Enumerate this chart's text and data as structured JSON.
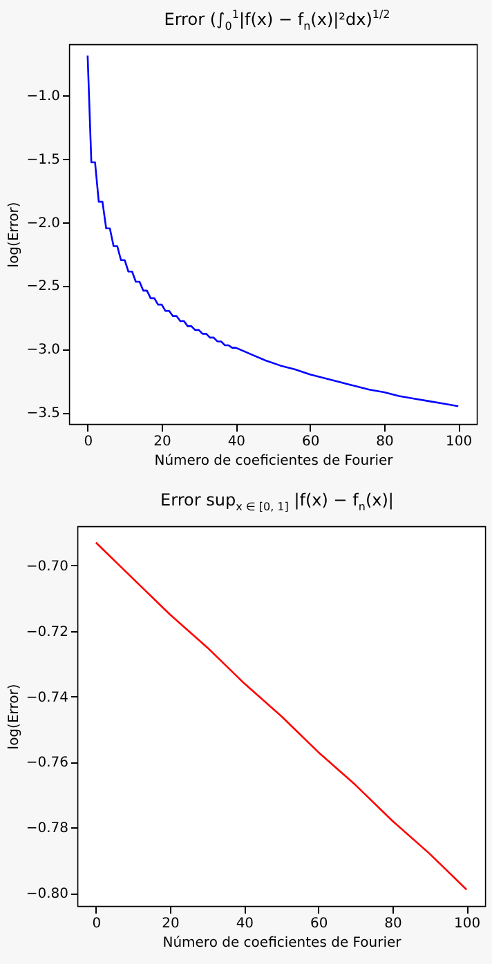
{
  "chart_data": [
    {
      "type": "line",
      "title": "Error (∫$_{0}$$^{1}$|f(x) − f$_{n}$(x)|²dx)$^{1/2}$",
      "xlabel": "Número de coeficientes de Fourier",
      "ylabel": "log(Error)",
      "x": [
        0,
        1,
        2,
        3,
        4,
        5,
        6,
        7,
        8,
        9,
        10,
        11,
        12,
        13,
        14,
        15,
        16,
        17,
        18,
        19,
        20,
        21,
        22,
        23,
        24,
        25,
        26,
        27,
        28,
        29,
        30,
        31,
        32,
        33,
        34,
        35,
        36,
        37,
        38,
        39,
        40,
        44,
        48,
        52,
        56,
        60,
        64,
        68,
        72,
        76,
        80,
        84,
        88,
        92,
        96,
        100
      ],
      "series": [
        {
          "color": "#0000ff",
          "values": [
            -0.69,
            -1.53,
            -1.53,
            -1.84,
            -1.84,
            -2.05,
            -2.05,
            -2.19,
            -2.19,
            -2.3,
            -2.3,
            -2.39,
            -2.39,
            -2.47,
            -2.47,
            -2.54,
            -2.54,
            -2.6,
            -2.6,
            -2.65,
            -2.65,
            -2.7,
            -2.7,
            -2.74,
            -2.74,
            -2.78,
            -2.78,
            -2.82,
            -2.82,
            -2.85,
            -2.85,
            -2.88,
            -2.88,
            -2.91,
            -2.91,
            -2.94,
            -2.94,
            -2.97,
            -2.97,
            -2.99,
            -2.99,
            -3.04,
            -3.09,
            -3.13,
            -3.16,
            -3.2,
            -3.23,
            -3.26,
            -3.29,
            -3.32,
            -3.34,
            -3.37,
            -3.39,
            -3.41,
            -3.43,
            -3.45
          ]
        }
      ],
      "xlim": [
        -5,
        105
      ],
      "xticks": [
        0,
        20,
        40,
        60,
        80,
        100
      ],
      "ylim": [
        -3.59,
        -0.6
      ],
      "yticks": [
        {
          "value": -3.5,
          "label": "−3.5"
        },
        {
          "value": -3,
          "label": "−3.0"
        },
        {
          "value": -2.5,
          "label": "−2.5"
        },
        {
          "value": -2,
          "label": "−2.0"
        },
        {
          "value": -1.5,
          "label": "−1.5"
        },
        {
          "value": -1,
          "label": "−1.0"
        }
      ],
      "grid": false
    },
    {
      "type": "line",
      "title": "Error sup$_{x ∈ [0, 1]}$ |f(x) − f$_{n}$(x)|",
      "xlabel": "Número de coeficientes de Fourier",
      "ylabel": "log(Error)",
      "x": [
        0,
        10,
        20,
        30,
        40,
        50,
        60,
        70,
        80,
        90,
        100
      ],
      "series": [
        {
          "color": "#ff0000",
          "values": [
            -0.693,
            -0.704,
            -0.715,
            -0.725,
            -0.736,
            -0.746,
            -0.757,
            -0.767,
            -0.778,
            -0.788,
            -0.799
          ]
        }
      ],
      "xlim": [
        -5,
        105
      ],
      "xticks": [
        0,
        20,
        40,
        60,
        80,
        100
      ],
      "ylim": [
        -0.804,
        -0.688
      ],
      "yticks": [
        {
          "value": -0.8,
          "label": "−0.80"
        },
        {
          "value": -0.78,
          "label": "−0.78"
        },
        {
          "value": -0.76,
          "label": "−0.76"
        },
        {
          "value": -0.74,
          "label": "−0.74"
        },
        {
          "value": -0.72,
          "label": "−0.72"
        },
        {
          "value": -0.7,
          "label": "−0.70"
        }
      ],
      "grid": false
    }
  ]
}
